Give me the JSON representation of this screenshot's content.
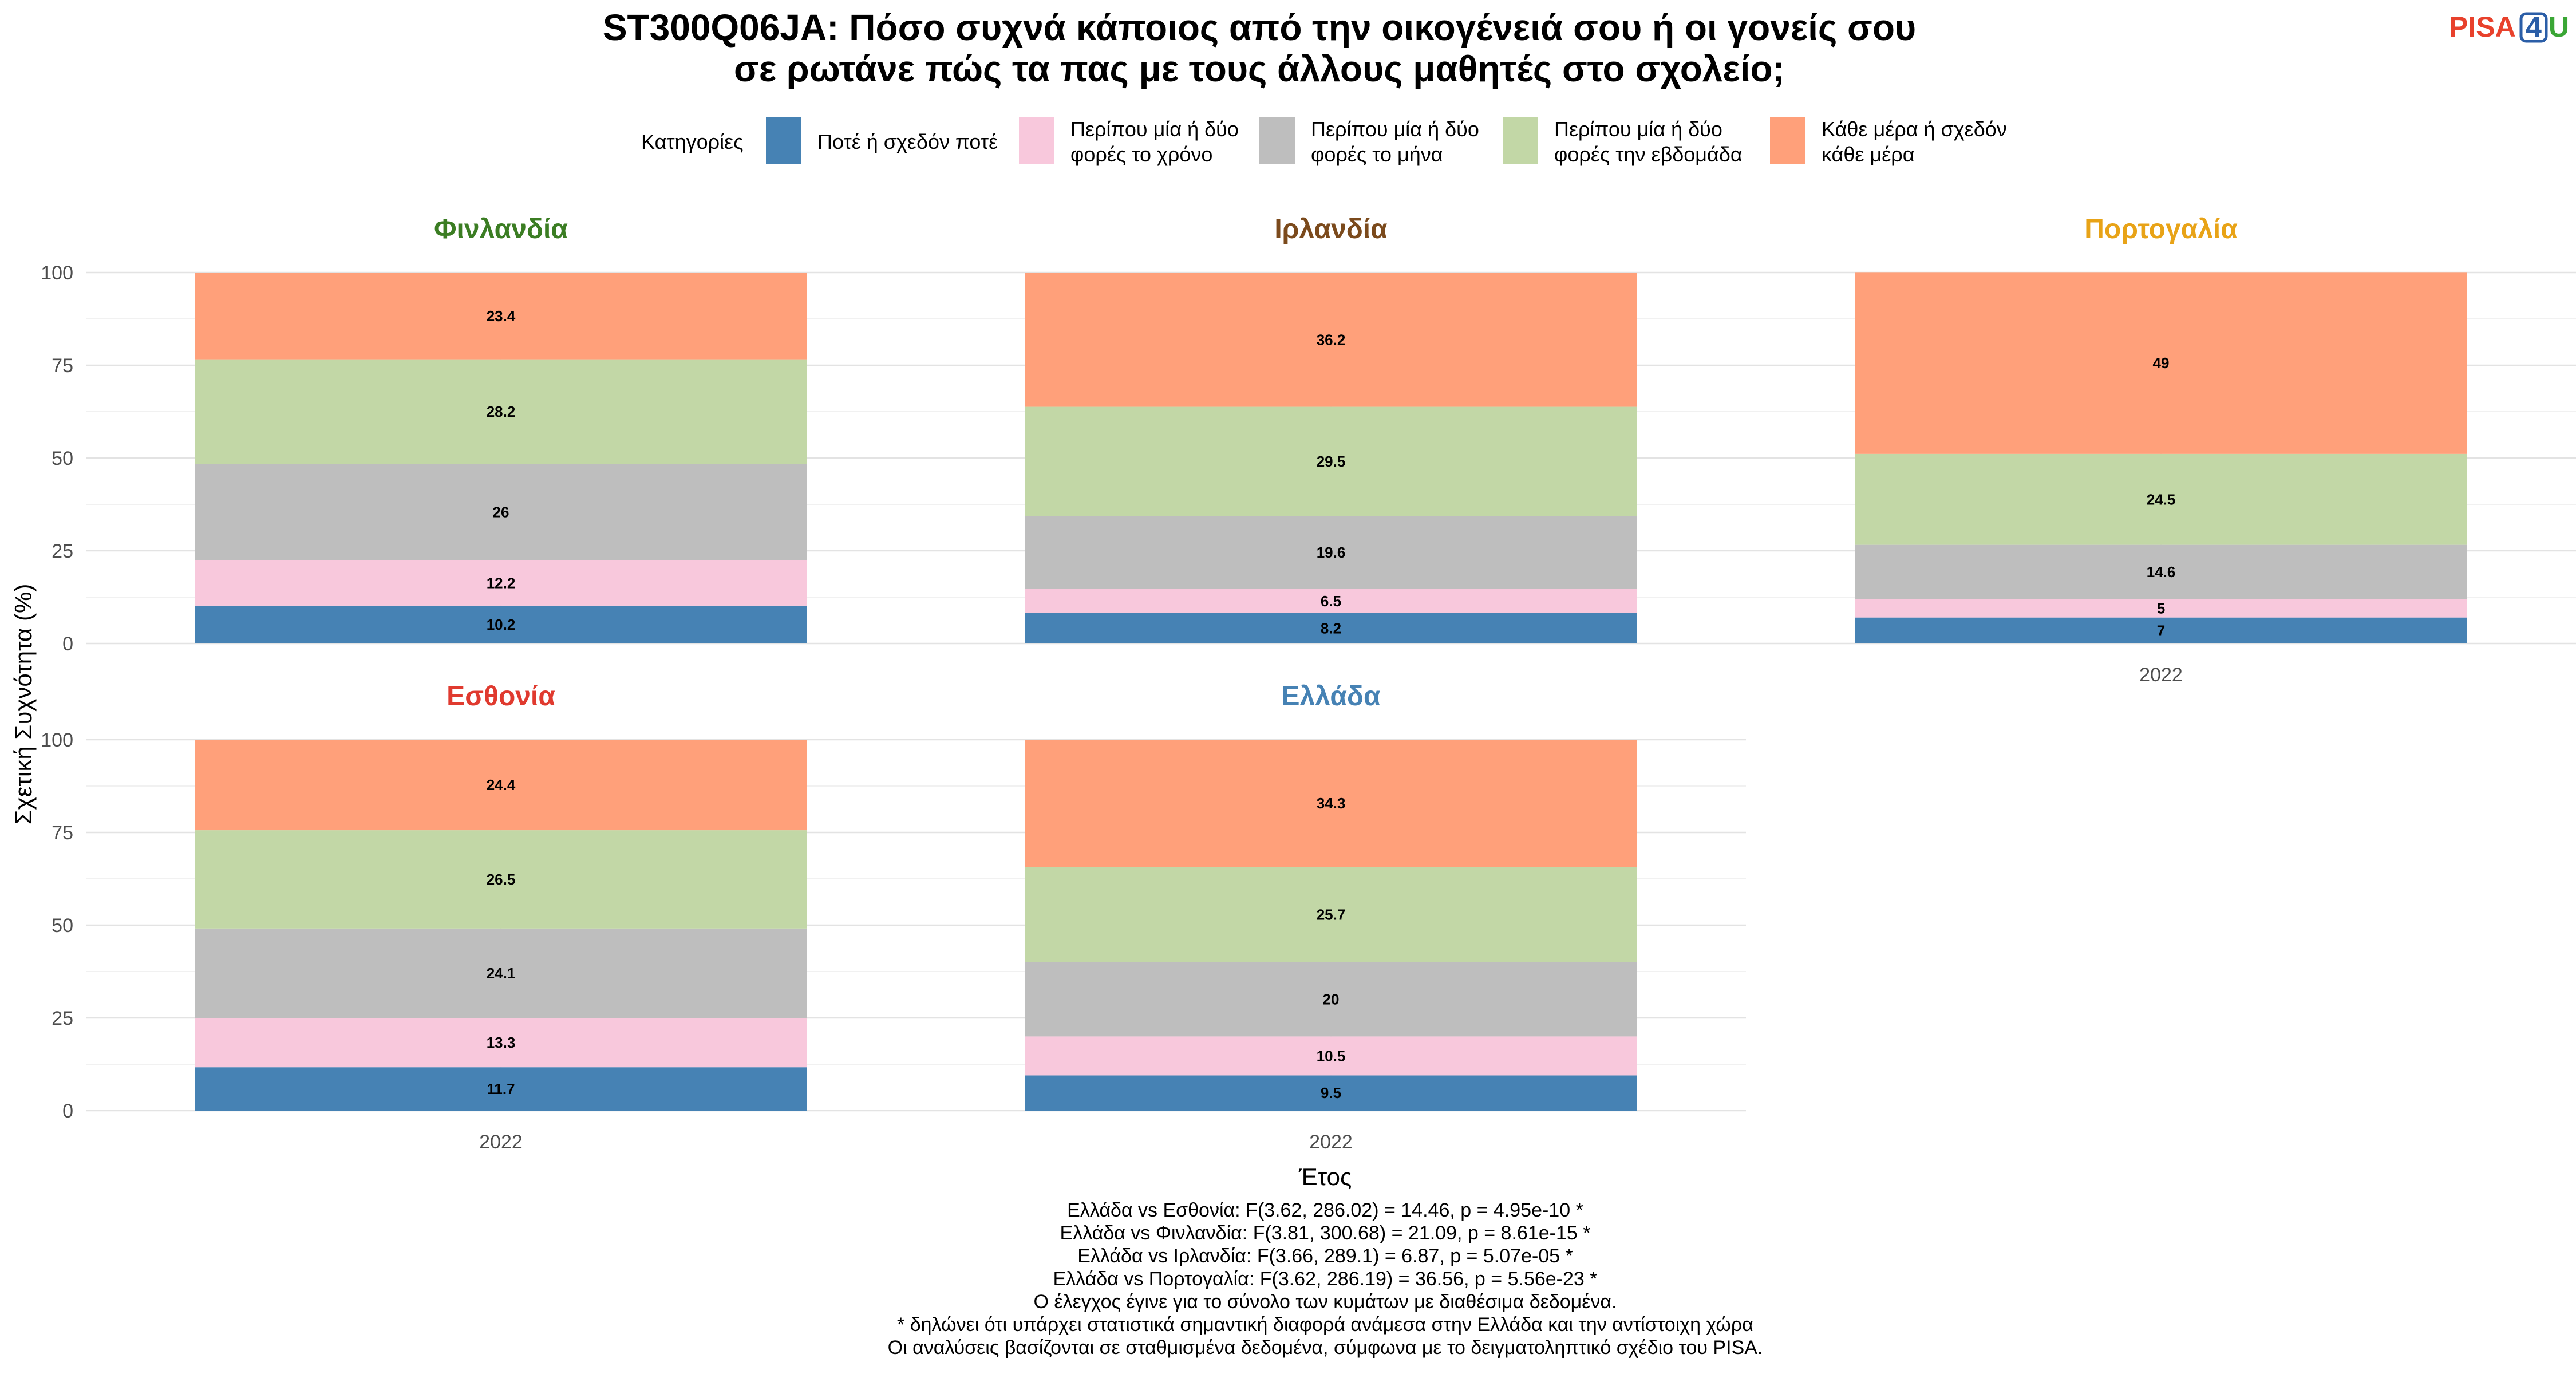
{
  "title_lines": [
    "ST300Q06JA: Πόσο συχνά κάποιος από την οικογένειά σου ή οι γονείς σου",
    "σε ρωτάνε πώς τα πας με τους άλλους μαθητές στο σχολείο;"
  ],
  "logo": {
    "part1": "PISA",
    "part2": "4",
    "part3": "U",
    "colors": {
      "part1": "#e8412c",
      "part2": "#2b5ea7",
      "part3": "#3aa635"
    }
  },
  "legend": {
    "title": "Κατηγορίες",
    "items": [
      {
        "lines": [
          "Ποτέ ή σχεδόν ποτέ"
        ],
        "color": "#4682b4"
      },
      {
        "lines": [
          "Περίπου μία ή δύο",
          "φορές το χρόνο"
        ],
        "color": "#f8c8dc"
      },
      {
        "lines": [
          "Περίπου μία ή δύο",
          "φορές το μήνα"
        ],
        "color": "#bebebe"
      },
      {
        "lines": [
          "Περίπου μία ή δύο",
          "φορές την εβδομάδα"
        ],
        "color": "#c2d7a6"
      },
      {
        "lines": [
          "Κάθε μέρα ή σχεδόν",
          "κάθε μέρα"
        ],
        "color": "#ffa07a"
      }
    ]
  },
  "axes": {
    "ylabel": "Σχετική Συχνότητα (%)",
    "xlabel": "Έτος",
    "yticks": [
      "0",
      "25",
      "50",
      "75",
      "100"
    ]
  },
  "chart_data": {
    "type": "bar",
    "stacked": true,
    "ylim": [
      0,
      100
    ],
    "categories": [
      "Ποτέ ή σχεδόν ποτέ",
      "Περίπου μία ή δύο φορές το χρόνο",
      "Περίπου μία ή δύο φορές το μήνα",
      "Περίπου μία ή δύο φορές την εβδομάδα",
      "Κάθε μέρα ή σχεδόν κάθε μέρα"
    ],
    "facets": [
      {
        "title": "Φινλανδία",
        "title_color": "#3b7d23",
        "x": "2022",
        "values": [
          10.2,
          12.2,
          26,
          28.2,
          23.4
        ]
      },
      {
        "title": "Ιρλανδία",
        "title_color": "#7b4a1c",
        "x": "2022",
        "values": [
          8.2,
          6.5,
          19.6,
          29.5,
          36.2
        ]
      },
      {
        "title": "Πορτογαλία",
        "title_color": "#e8a317",
        "x": "2022",
        "values": [
          7,
          5,
          14.6,
          24.5,
          49
        ]
      },
      {
        "title": "Εσθονία",
        "title_color": "#e03a2f",
        "x": "2022",
        "values": [
          11.7,
          13.3,
          24.1,
          26.5,
          24.4
        ]
      },
      {
        "title": "Ελλάδα",
        "title_color": "#4682b4",
        "x": "2022",
        "values": [
          9.5,
          10.5,
          20,
          25.7,
          34.3
        ]
      }
    ]
  },
  "notes": [
    "Ελλάδα vs Εσθονία: F(3.62, 286.02) = 14.46, p = 4.95e-10 *",
    "Ελλάδα vs Φινλανδία: F(3.81, 300.68) = 21.09, p = 8.61e-15 *",
    "Ελλάδα vs Ιρλανδία: F(3.66, 289.1) = 6.87, p = 5.07e-05 *",
    "Ελλάδα vs Πορτογαλία: F(3.62, 286.19) = 36.56, p = 5.56e-23 *",
    "Ο έλεγχος έγινε για το σύνολο των κυμάτων με διαθέσιμα δεδομένα.",
    "* δηλώνει ότι υπάρχει στατιστικά σημαντική διαφορά ανάμεσα στην Ελλάδα και την αντίστοιχη χώρα",
    "Οι αναλύσεις βασίζονται σε σταθμισμένα δεδομένα, σύμφωνα με το δειγματοληπτικό σχέδιο του PISA."
  ]
}
